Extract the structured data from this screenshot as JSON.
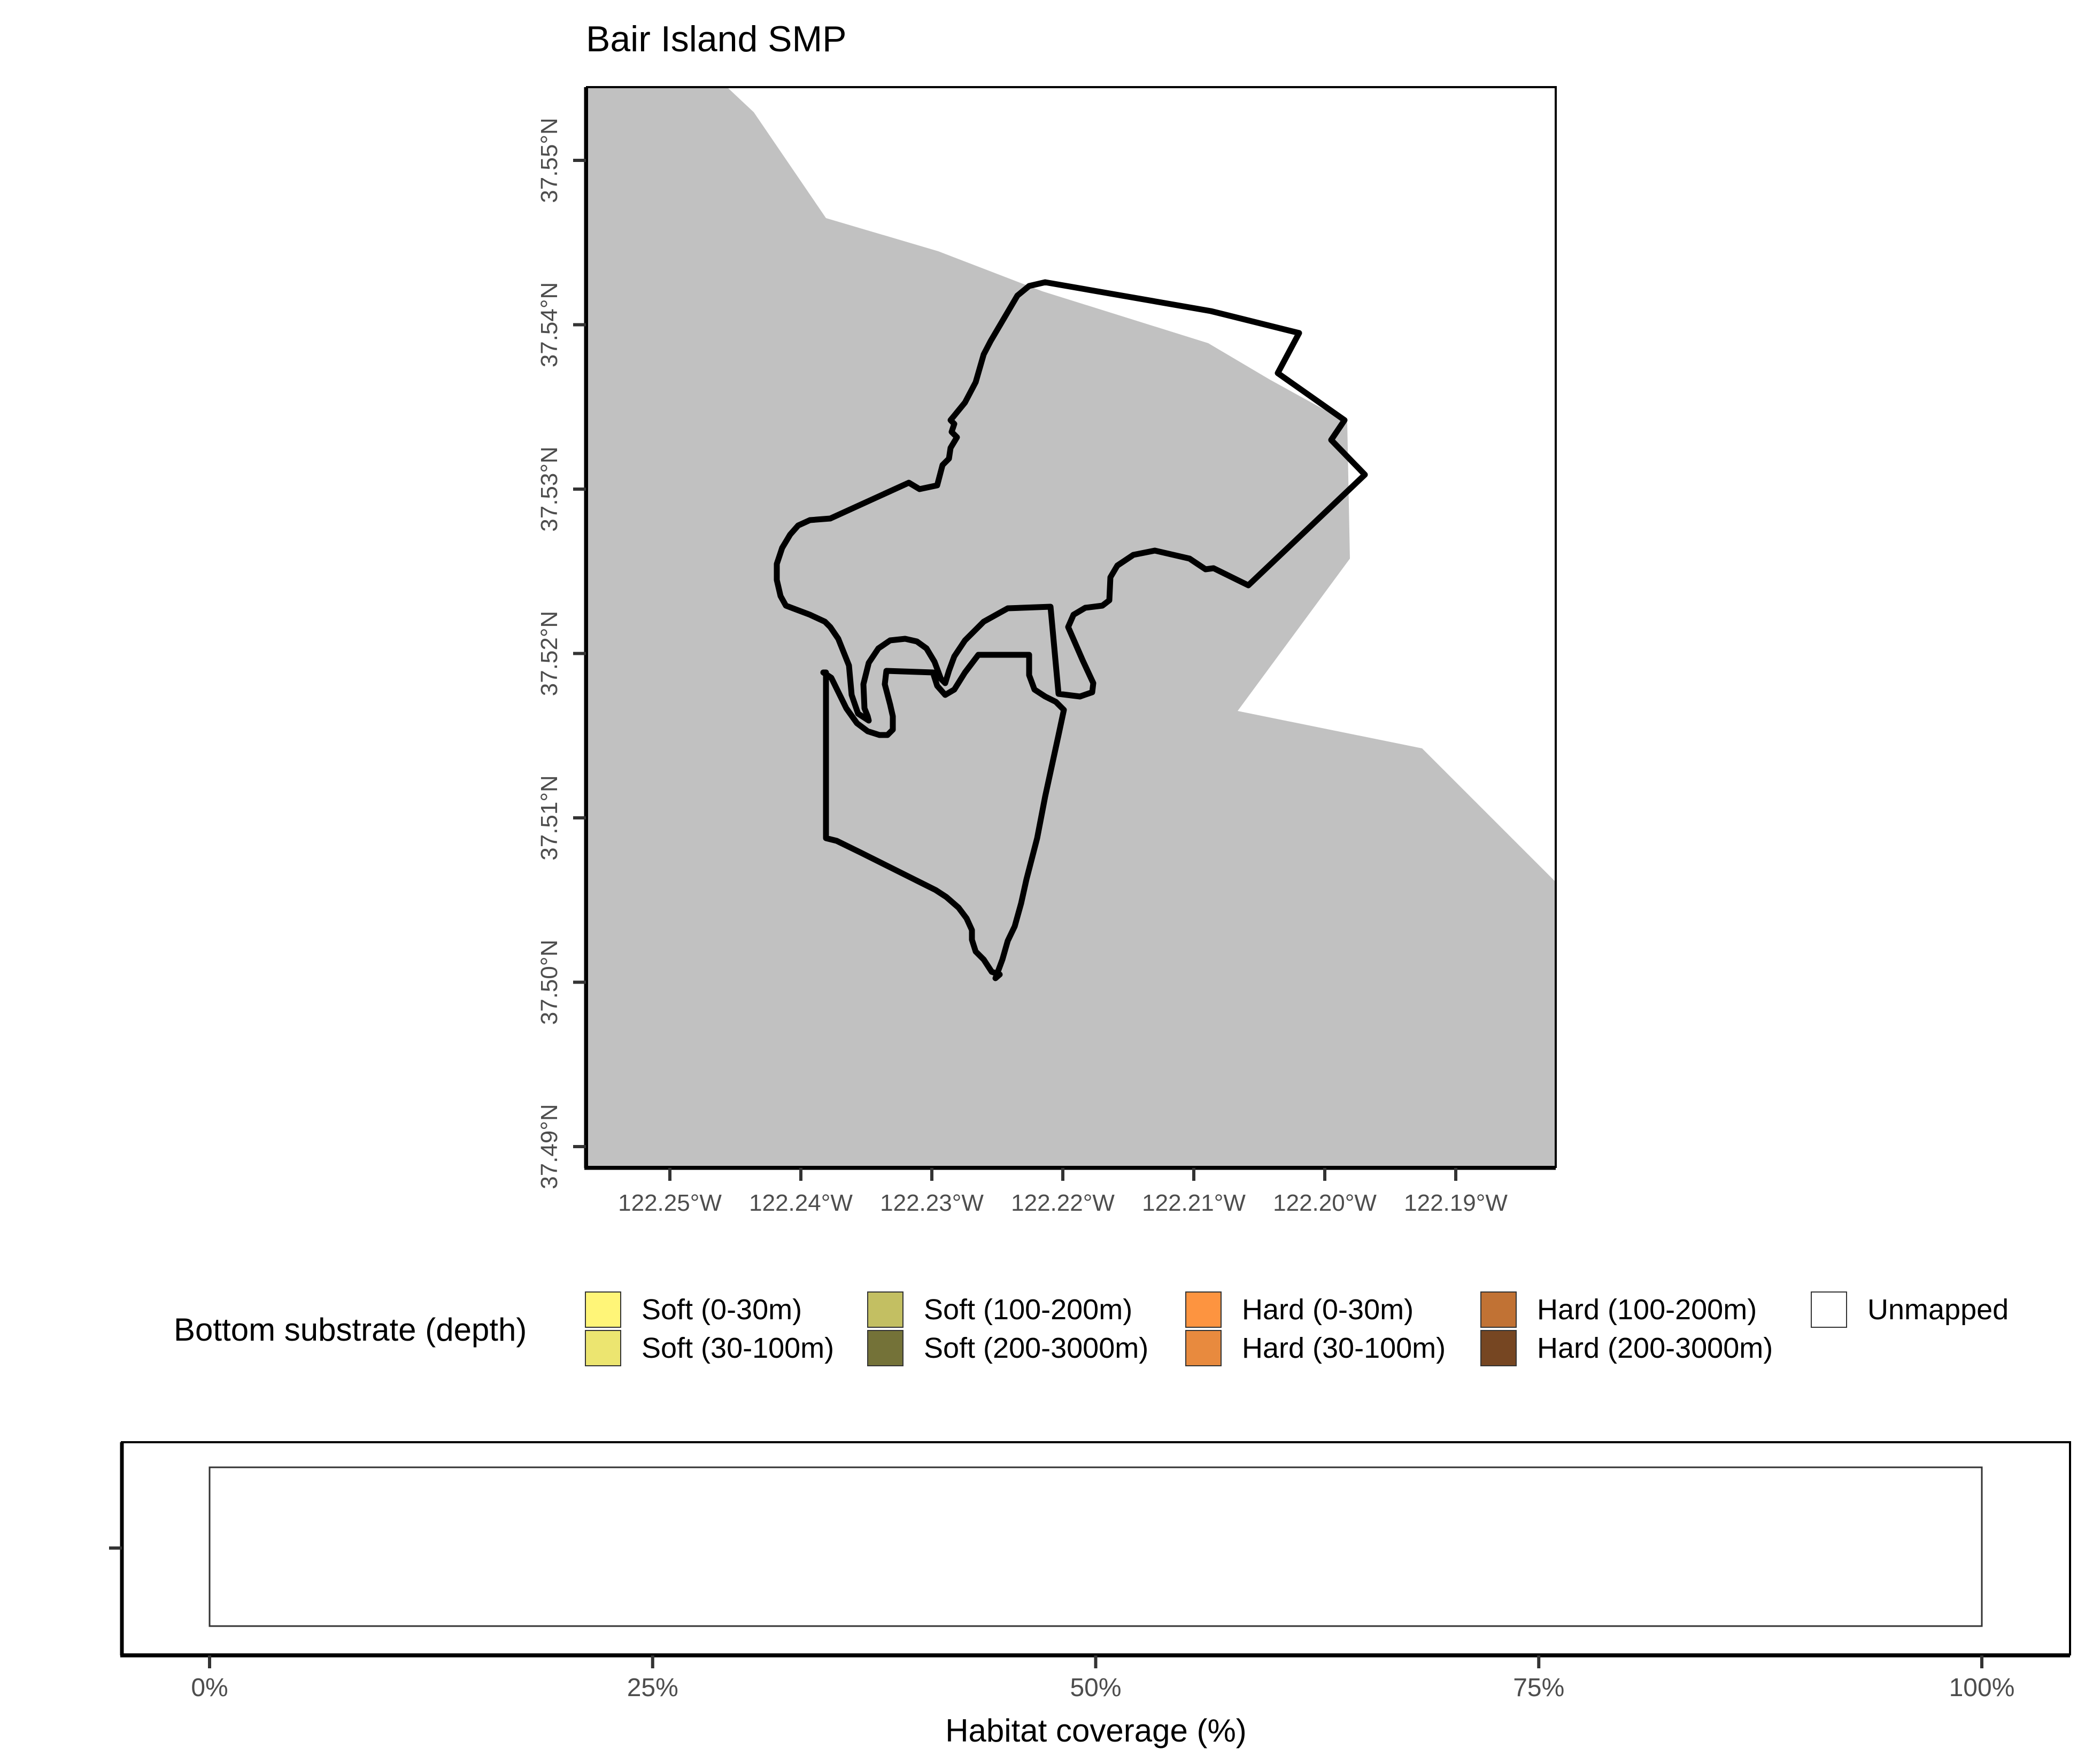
{
  "map": {
    "title": "Bair Island SMP",
    "lat_ticks": [
      "37.55°N",
      "37.54°N",
      "37.53°N",
      "37.52°N",
      "37.51°N",
      "37.50°N",
      "37.49°N"
    ],
    "lon_ticks": [
      "122.25°W",
      "122.24°W",
      "122.23°W",
      "122.22°W",
      "122.21°W",
      "122.20°W",
      "122.19°W"
    ],
    "land_color": "#c1c1c1",
    "water_color": "#ffffff",
    "boundary_color": "#000000"
  },
  "legend": {
    "title": "Bottom substrate (depth)",
    "items": [
      {
        "label": "Soft (0-30m)",
        "color": "#fff578"
      },
      {
        "label": "Soft (30-100m)",
        "color": "#ece570"
      },
      {
        "label": "Soft (100-200m)",
        "color": "#c3bf62"
      },
      {
        "label": "Soft (200-3000m)",
        "color": "#747238"
      },
      {
        "label": "Hard (0-30m)",
        "color": "#fd9440"
      },
      {
        "label": "Hard (30-100m)",
        "color": "#e88a3e"
      },
      {
        "label": "Hard (100-200m)",
        "color": "#c17234"
      },
      {
        "label": "Hard (200-3000m)",
        "color": "#764622"
      },
      {
        "label": "Unmapped",
        "color": "#ffffff"
      }
    ]
  },
  "chart_data": {
    "type": "bar",
    "orientation": "horizontal",
    "xlabel": "Habitat coverage (%)",
    "x_ticks": [
      "0%",
      "25%",
      "50%",
      "75%",
      "100%"
    ],
    "xlim": [
      0,
      100
    ],
    "series": [
      {
        "name": "Unmapped",
        "start": 0,
        "value": 100,
        "color": "#ffffff"
      }
    ]
  }
}
